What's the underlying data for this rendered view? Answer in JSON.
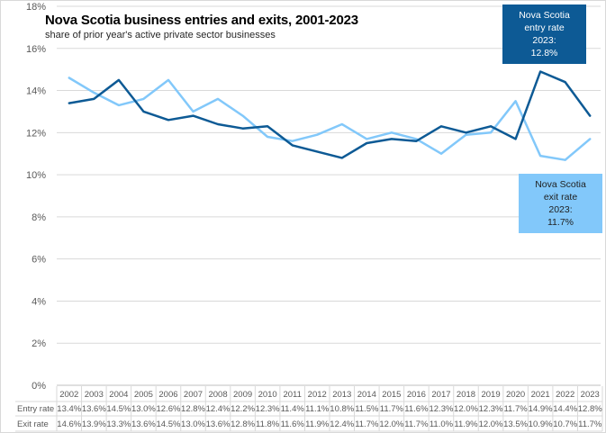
{
  "chart_data": {
    "type": "line",
    "title": "Nova Scotia business  entries and exits, 2001-2023",
    "subtitle": "share of prior year's active private sector businesses",
    "xlabel": "",
    "ylabel": "",
    "ylim": [
      0,
      18
    ],
    "y_ticks": [
      "0%",
      "2%",
      "4%",
      "6%",
      "8%",
      "10%",
      "12%",
      "14%",
      "16%",
      "18%"
    ],
    "y_tick_values": [
      0,
      2,
      4,
      6,
      8,
      10,
      12,
      14,
      16,
      18
    ],
    "grid": true,
    "categories": [
      "2002",
      "2003",
      "2004",
      "2005",
      "2006",
      "2007",
      "2008",
      "2009",
      "2010",
      "2011",
      "2012",
      "2013",
      "2014",
      "2015",
      "2016",
      "2017",
      "2018",
      "2019",
      "2020",
      "2021",
      "2022",
      "2023"
    ],
    "series": [
      {
        "name": "Entry rate",
        "color": "#0d5a95",
        "values": [
          13.4,
          13.6,
          14.5,
          13.0,
          12.6,
          12.8,
          12.4,
          12.2,
          12.3,
          11.4,
          11.1,
          10.8,
          11.5,
          11.7,
          11.6,
          12.3,
          12.0,
          12.3,
          11.7,
          14.9,
          14.4,
          12.8
        ],
        "labels": [
          "13.4%",
          "13.6%",
          "14.5%",
          "13.0%",
          "12.6%",
          "12.8%",
          "12.4%",
          "12.2%",
          "12.3%",
          "11.4%",
          "11.1%",
          "10.8%",
          "11.5%",
          "11.7%",
          "11.6%",
          "12.3%",
          "12.0%",
          "12.3%",
          "11.7%",
          "14.9%",
          "14.4%",
          "12.8%"
        ]
      },
      {
        "name": "Exit rate",
        "color": "#82c8fa",
        "values": [
          14.6,
          13.9,
          13.3,
          13.6,
          14.5,
          13.0,
          13.6,
          12.8,
          11.8,
          11.6,
          11.9,
          12.4,
          11.7,
          12.0,
          11.7,
          11.0,
          11.9,
          12.0,
          13.5,
          10.9,
          10.7,
          11.7
        ],
        "labels": [
          "14.6%",
          "13.9%",
          "13.3%",
          "13.6%",
          "14.5%",
          "13.0%",
          "13.6%",
          "12.8%",
          "11.8%",
          "11.6%",
          "11.9%",
          "12.4%",
          "11.7%",
          "12.0%",
          "11.7%",
          "11.0%",
          "11.9%",
          "12.0%",
          "13.5%",
          "10.9%",
          "10.7%",
          "11.7%"
        ]
      }
    ],
    "annotations": [
      {
        "lines": [
          "Nova Scotia",
          "entry rate",
          "2023:",
          "12.8%"
        ],
        "color": "#0d5a95"
      },
      {
        "lines": [
          "Nova Scotia",
          "exit rate",
          "2023:",
          "11.7%"
        ],
        "color": "#82c8fa"
      }
    ],
    "legend": "data-table-bottom"
  }
}
